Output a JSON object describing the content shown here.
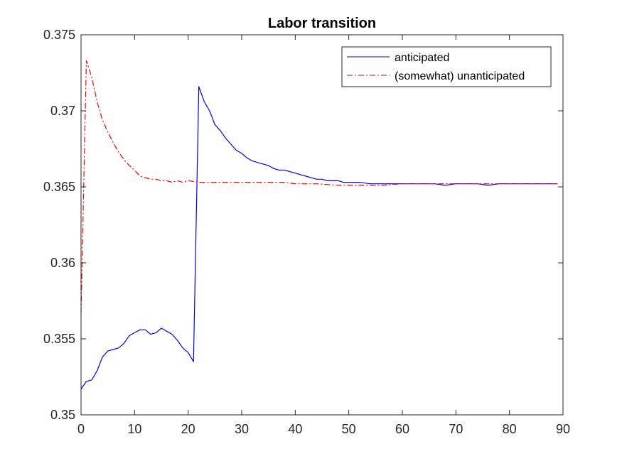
{
  "chart_data": {
    "type": "line",
    "title": "Labor transition",
    "xlabel": "",
    "ylabel": "",
    "xlim": [
      0,
      90
    ],
    "ylim": [
      0.35,
      0.375
    ],
    "xticks": [
      0,
      10,
      20,
      30,
      40,
      50,
      60,
      70,
      80,
      90
    ],
    "yticks": [
      0.35,
      0.355,
      0.36,
      0.365,
      0.37,
      0.375
    ],
    "xtick_labels": [
      "0",
      "10",
      "20",
      "30",
      "40",
      "50",
      "60",
      "70",
      "80",
      "90"
    ],
    "ytick_labels": [
      "0.35",
      "0.355",
      "0.36",
      "0.365",
      "0.37",
      "0.375"
    ],
    "grid": false,
    "legend_position": "top-right",
    "series": [
      {
        "name": "anticipated",
        "color": "#0000ff",
        "style": "solid",
        "x": [
          0,
          1,
          2,
          3,
          4,
          5,
          6,
          7,
          8,
          9,
          10,
          11,
          12,
          13,
          14,
          15,
          16,
          17,
          18,
          19,
          20,
          21,
          22,
          23,
          24,
          25,
          26,
          27,
          28,
          29,
          30,
          31,
          32,
          33,
          34,
          35,
          36,
          37,
          38,
          39,
          40,
          41,
          42,
          43,
          44,
          45,
          46,
          47,
          48,
          49,
          50,
          52,
          54,
          56,
          58,
          60,
          62,
          64,
          66,
          68,
          70,
          72,
          74,
          76,
          78,
          80,
          82,
          84,
          86,
          88,
          89
        ],
        "y": [
          0.3517,
          0.3522,
          0.3523,
          0.3529,
          0.3538,
          0.3542,
          0.3543,
          0.3544,
          0.3547,
          0.3552,
          0.3554,
          0.3556,
          0.3556,
          0.3553,
          0.3554,
          0.3557,
          0.3555,
          0.3553,
          0.3549,
          0.3544,
          0.3541,
          0.3535,
          0.3716,
          0.3706,
          0.37,
          0.3691,
          0.3687,
          0.3682,
          0.3678,
          0.3674,
          0.3672,
          0.3669,
          0.3667,
          0.3666,
          0.3665,
          0.3664,
          0.3662,
          0.3661,
          0.3661,
          0.366,
          0.3659,
          0.3658,
          0.3657,
          0.3656,
          0.3655,
          0.3655,
          0.3654,
          0.3654,
          0.3654,
          0.3653,
          0.3653,
          0.3653,
          0.3652,
          0.3652,
          0.3652,
          0.3652,
          0.3652,
          0.3652,
          0.3652,
          0.3651,
          0.3652,
          0.3652,
          0.3652,
          0.3651,
          0.3652,
          0.3652,
          0.3652,
          0.3652,
          0.3652,
          0.3652,
          0.3652
        ]
      },
      {
        "name": "(somewhat) unanticipated",
        "color": "#ff0000",
        "style": "dashdot",
        "x": [
          0,
          1,
          2,
          3,
          4,
          5,
          6,
          7,
          8,
          9,
          10,
          11,
          12,
          13,
          14,
          15,
          16,
          17,
          18,
          19,
          20,
          22,
          24,
          26,
          28,
          30,
          32,
          34,
          36,
          38,
          40,
          44,
          48,
          52,
          56,
          60,
          64,
          68,
          72,
          76,
          80,
          84,
          89
        ],
        "y": [
          0.3567,
          0.3733,
          0.3722,
          0.3706,
          0.3694,
          0.3686,
          0.3679,
          0.3673,
          0.3668,
          0.3664,
          0.3661,
          0.3657,
          0.3656,
          0.3655,
          0.3655,
          0.3654,
          0.3654,
          0.3653,
          0.3654,
          0.3653,
          0.3654,
          0.3653,
          0.3653,
          0.3653,
          0.3653,
          0.3653,
          0.3653,
          0.3653,
          0.3653,
          0.3653,
          0.3652,
          0.3652,
          0.3651,
          0.3651,
          0.3651,
          0.3652,
          0.3652,
          0.3652,
          0.3652,
          0.3652,
          0.3652,
          0.3652,
          0.3652
        ]
      }
    ]
  }
}
